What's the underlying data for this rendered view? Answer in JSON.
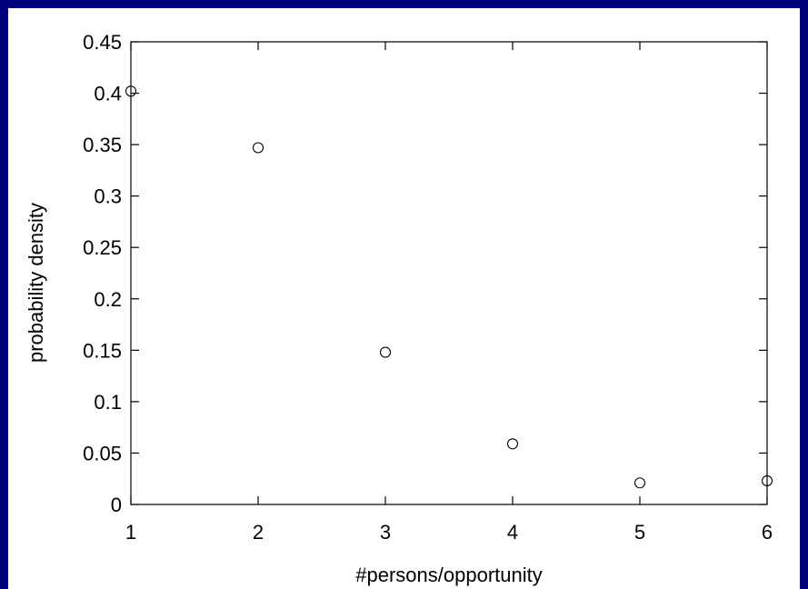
{
  "chart_data": {
    "type": "scatter",
    "title": "",
    "xlabel": "#persons/opportunity",
    "ylabel": "probability density",
    "xlim": [
      1,
      6
    ],
    "ylim": [
      0,
      0.45
    ],
    "x_ticks": [
      "1",
      "2",
      "3",
      "4",
      "5",
      "6"
    ],
    "y_ticks": [
      "0",
      "0.05",
      "0.1",
      "0.15",
      "0.2",
      "0.25",
      "0.3",
      "0.35",
      "0.4",
      "0.45"
    ],
    "grid": false,
    "marker": "open-circle",
    "series": [
      {
        "x": [
          1,
          2,
          3,
          4,
          5,
          6
        ],
        "values": [
          0.402,
          0.347,
          0.148,
          0.059,
          0.021,
          0.023
        ]
      }
    ]
  },
  "colors": {
    "frame": "#00007a",
    "background": "#ffffff",
    "ink": "#000000"
  }
}
